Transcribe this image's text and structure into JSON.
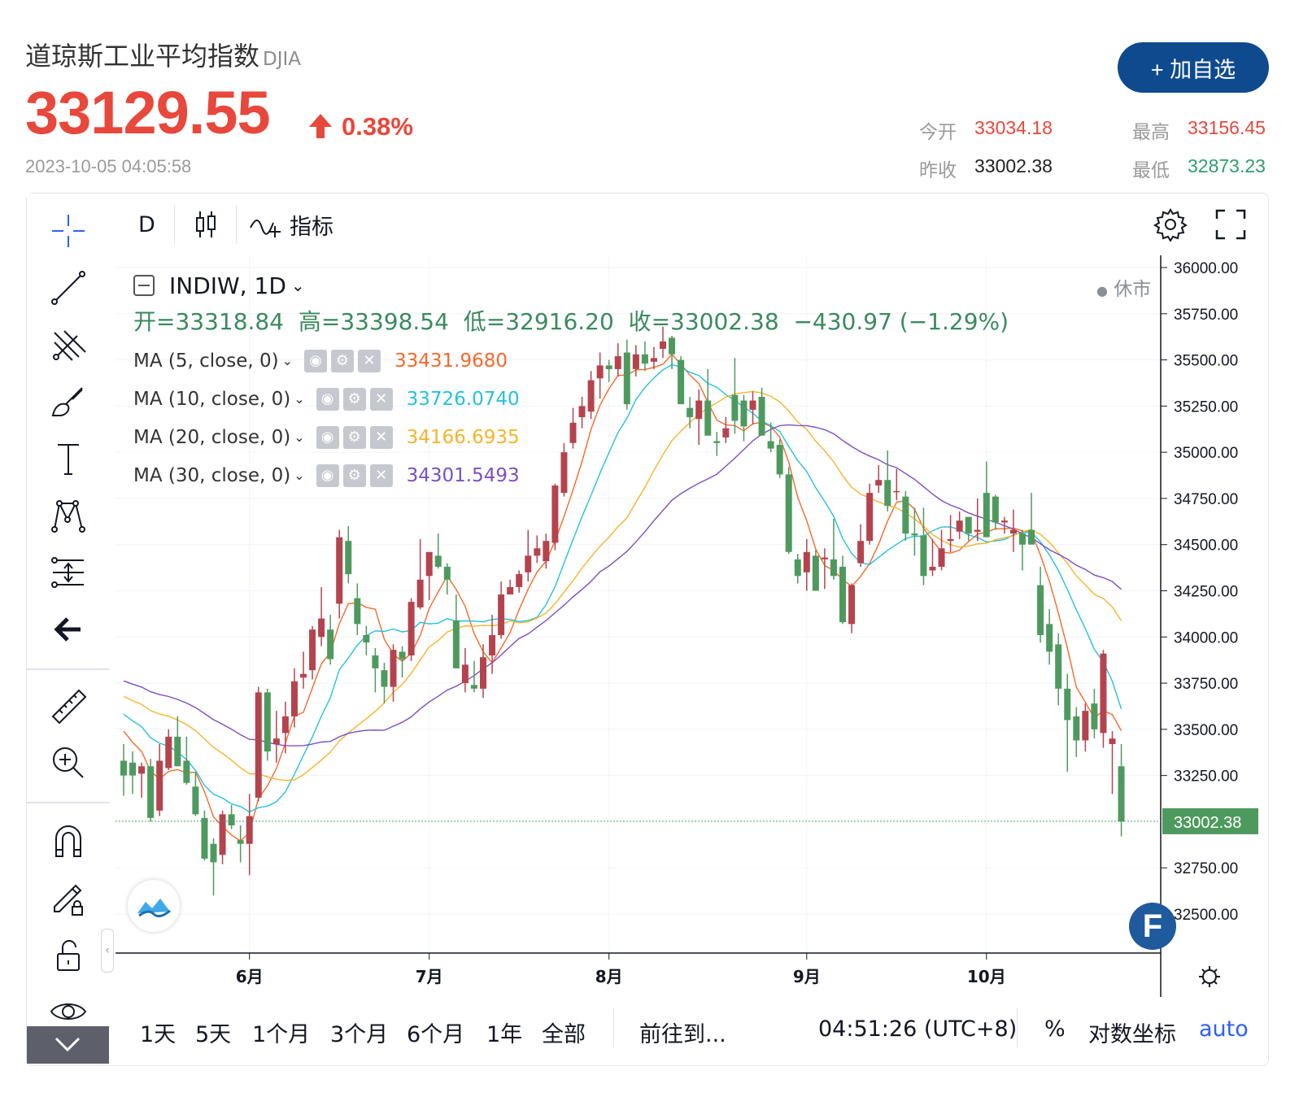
{
  "header": {
    "title": "道琼斯工业平均指数",
    "symbol": "DJIA",
    "price": "33129.55",
    "change_pct": "0.38%",
    "timestamp": "2023-10-05 04:05:58",
    "add_button": "+ 加自选",
    "stats": {
      "open_label": "今开",
      "open_value": "33034.18",
      "high_label": "最高",
      "high_value": "33156.45",
      "prev_close_label": "昨收",
      "prev_close_value": "33002.38",
      "low_label": "最低",
      "low_value": "32873.23"
    },
    "colors": {
      "up": "#e8473b",
      "down": "#2e9e6b",
      "brand": "#0f4a8f"
    }
  },
  "toolbar": {
    "interval": "D",
    "indicators_label": "指标",
    "icons": [
      "crosshair-icon",
      "trend-line-icon",
      "pitchfork-icon",
      "brush-icon",
      "text-icon",
      "pattern-icon",
      "long-position-icon",
      "back-arrow-icon",
      "ruler-icon",
      "zoom-in-icon",
      "magnet-icon",
      "lock-drawing-icon",
      "unlock-icon",
      "eye-icon",
      "chevron-down-icon"
    ]
  },
  "legend": {
    "symbol_line": "INDIW, 1D",
    "market_status": "休市",
    "ohlc_text": "开=33318.84  高=33398.54  低=32916.20  收=33002.38  −430.97 (−1.29%)",
    "ma": [
      {
        "label": "MA (5, close, 0)",
        "value": "33431.9680",
        "color": "#f7692a"
      },
      {
        "label": "MA (10, close, 0)",
        "value": "33726.0740",
        "color": "#26c1dc"
      },
      {
        "label": "MA (20, close, 0)",
        "value": "34166.6935",
        "color": "#f7b32b"
      },
      {
        "label": "MA (30, close, 0)",
        "value": "34301.5493",
        "color": "#7b4fc4"
      }
    ]
  },
  "bottom": {
    "ranges": [
      "1天",
      "5天",
      "1个月",
      "3个月",
      "6个月",
      "1年",
      "全部"
    ],
    "goto": "前往到...",
    "clock": "04:51:26 (UTC+8)",
    "percent": "%",
    "log_scale": "对数坐标",
    "auto": "auto"
  },
  "chart_data": {
    "type": "candlestick",
    "title": "INDIW, 1D",
    "ylim": [
      32300,
      36100
    ],
    "y_ticks": [
      "36000.00",
      "35750.00",
      "35500.00",
      "35250.00",
      "35000.00",
      "34750.00",
      "34500.00",
      "34250.00",
      "34000.00",
      "33750.00",
      "33500.00",
      "33250.00",
      "32750.00",
      "32500.00"
    ],
    "x_ticks": [
      {
        "label": "6月",
        "index": 14
      },
      {
        "label": "7月",
        "index": 34
      },
      {
        "label": "8月",
        "index": 54
      },
      {
        "label": "9月",
        "index": 76
      },
      {
        "label": "10月",
        "index": 96
      }
    ],
    "last_price_label": "33002.38",
    "candles": [
      {
        "o": 33330,
        "h": 33420,
        "l": 33140,
        "c": 33250
      },
      {
        "o": 33320,
        "h": 33380,
        "l": 33150,
        "c": 33250
      },
      {
        "o": 33260,
        "h": 33320,
        "l": 33130,
        "c": 33300
      },
      {
        "o": 33300,
        "h": 33340,
        "l": 33000,
        "c": 33020
      },
      {
        "o": 33060,
        "h": 33420,
        "l": 33030,
        "c": 33330
      },
      {
        "o": 33290,
        "h": 33500,
        "l": 33280,
        "c": 33460
      },
      {
        "o": 33460,
        "h": 33570,
        "l": 33300,
        "c": 33300
      },
      {
        "o": 33330,
        "h": 33460,
        "l": 33200,
        "c": 33210
      },
      {
        "o": 33190,
        "h": 33270,
        "l": 33030,
        "c": 33040
      },
      {
        "o": 33020,
        "h": 33060,
        "l": 32790,
        "c": 32800
      },
      {
        "o": 32880,
        "h": 32910,
        "l": 32600,
        "c": 32780
      },
      {
        "o": 32820,
        "h": 33060,
        "l": 32770,
        "c": 33040
      },
      {
        "o": 33040,
        "h": 33090,
        "l": 32960,
        "c": 32980
      },
      {
        "o": 32900,
        "h": 32980,
        "l": 32780,
        "c": 32880
      },
      {
        "o": 32880,
        "h": 33150,
        "l": 32710,
        "c": 33030
      },
      {
        "o": 33130,
        "h": 33730,
        "l": 33110,
        "c": 33700
      },
      {
        "o": 33700,
        "h": 33720,
        "l": 33330,
        "c": 33380
      },
      {
        "o": 33420,
        "h": 33600,
        "l": 33320,
        "c": 33450
      },
      {
        "o": 33480,
        "h": 33650,
        "l": 33370,
        "c": 33570
      },
      {
        "o": 33570,
        "h": 33830,
        "l": 33510,
        "c": 33760
      },
      {
        "o": 33780,
        "h": 33920,
        "l": 33720,
        "c": 33800
      },
      {
        "o": 33820,
        "h": 34060,
        "l": 33770,
        "c": 34040
      },
      {
        "o": 34000,
        "h": 34270,
        "l": 33950,
        "c": 34100
      },
      {
        "o": 34040,
        "h": 34120,
        "l": 33850,
        "c": 33880
      },
      {
        "o": 34180,
        "h": 34580,
        "l": 34100,
        "c": 34540
      },
      {
        "o": 34520,
        "h": 34600,
        "l": 34290,
        "c": 34340
      },
      {
        "o": 34210,
        "h": 34290,
        "l": 34010,
        "c": 34070
      },
      {
        "o": 34010,
        "h": 34060,
        "l": 33900,
        "c": 33970
      },
      {
        "o": 33900,
        "h": 33940,
        "l": 33700,
        "c": 33830
      },
      {
        "o": 33820,
        "h": 33860,
        "l": 33640,
        "c": 33730
      },
      {
        "o": 33730,
        "h": 33960,
        "l": 33650,
        "c": 33930
      },
      {
        "o": 33920,
        "h": 33950,
        "l": 33780,
        "c": 33880
      },
      {
        "o": 33900,
        "h": 34210,
        "l": 33870,
        "c": 34190
      },
      {
        "o": 34160,
        "h": 34530,
        "l": 34150,
        "c": 34310
      },
      {
        "o": 34330,
        "h": 34440,
        "l": 34200,
        "c": 34460
      },
      {
        "o": 34440,
        "h": 34560,
        "l": 34370,
        "c": 34380
      },
      {
        "o": 34380,
        "h": 34400,
        "l": 34230,
        "c": 34310
      },
      {
        "o": 34090,
        "h": 34230,
        "l": 33830,
        "c": 33830
      },
      {
        "o": 33750,
        "h": 33940,
        "l": 33700,
        "c": 33850
      },
      {
        "o": 33740,
        "h": 33870,
        "l": 33700,
        "c": 33720
      },
      {
        "o": 33720,
        "h": 33960,
        "l": 33670,
        "c": 33890
      },
      {
        "o": 33900,
        "h": 34120,
        "l": 33800,
        "c": 34010
      },
      {
        "o": 34010,
        "h": 34300,
        "l": 33990,
        "c": 34230
      },
      {
        "o": 34230,
        "h": 34310,
        "l": 34230,
        "c": 34270
      },
      {
        "o": 34270,
        "h": 34360,
        "l": 34240,
        "c": 34340
      },
      {
        "o": 34350,
        "h": 34580,
        "l": 34300,
        "c": 34440
      },
      {
        "o": 34440,
        "h": 34550,
        "l": 34400,
        "c": 34480
      },
      {
        "o": 34410,
        "h": 34560,
        "l": 34370,
        "c": 34520
      },
      {
        "o": 34510,
        "h": 34830,
        "l": 34470,
        "c": 34820
      },
      {
        "o": 34780,
        "h": 35050,
        "l": 34760,
        "c": 35000
      },
      {
        "o": 35050,
        "h": 35240,
        "l": 35020,
        "c": 35160
      },
      {
        "o": 35190,
        "h": 35300,
        "l": 35130,
        "c": 35250
      },
      {
        "o": 35220,
        "h": 35440,
        "l": 35180,
        "c": 35390
      },
      {
        "o": 35400,
        "h": 35540,
        "l": 35290,
        "c": 35470
      },
      {
        "o": 35470,
        "h": 35500,
        "l": 35380,
        "c": 35450
      },
      {
        "o": 35450,
        "h": 35590,
        "l": 35410,
        "c": 35520
      },
      {
        "o": 35540,
        "h": 35610,
        "l": 35230,
        "c": 35260
      },
      {
        "o": 35450,
        "h": 35580,
        "l": 35410,
        "c": 35530
      },
      {
        "o": 35530,
        "h": 35600,
        "l": 35440,
        "c": 35480
      },
      {
        "o": 35490,
        "h": 35570,
        "l": 35450,
        "c": 35510
      },
      {
        "o": 35560,
        "h": 35680,
        "l": 35510,
        "c": 35600
      },
      {
        "o": 35620,
        "h": 35630,
        "l": 35450,
        "c": 35530
      },
      {
        "o": 35500,
        "h": 35520,
        "l": 35260,
        "c": 35260
      },
      {
        "o": 35240,
        "h": 35300,
        "l": 35130,
        "c": 35190
      },
      {
        "o": 35180,
        "h": 35340,
        "l": 35040,
        "c": 35280
      },
      {
        "o": 35280,
        "h": 35450,
        "l": 35110,
        "c": 35090
      },
      {
        "o": 35060,
        "h": 35110,
        "l": 34980,
        "c": 35050
      },
      {
        "o": 35080,
        "h": 35190,
        "l": 35050,
        "c": 35130
      },
      {
        "o": 35310,
        "h": 35510,
        "l": 35100,
        "c": 35170
      },
      {
        "o": 35280,
        "h": 35310,
        "l": 35060,
        "c": 35140
      },
      {
        "o": 35230,
        "h": 35330,
        "l": 35150,
        "c": 35280
      },
      {
        "o": 35300,
        "h": 35350,
        "l": 35090,
        "c": 35090
      },
      {
        "o": 35060,
        "h": 35160,
        "l": 35000,
        "c": 35020
      },
      {
        "o": 35040,
        "h": 35070,
        "l": 34860,
        "c": 34880
      },
      {
        "o": 34880,
        "h": 34920,
        "l": 34450,
        "c": 34460
      },
      {
        "o": 34420,
        "h": 34450,
        "l": 34290,
        "c": 34330
      },
      {
        "o": 34350,
        "h": 34530,
        "l": 34250,
        "c": 34460
      },
      {
        "o": 34440,
        "h": 34470,
        "l": 34260,
        "c": 34250
      },
      {
        "o": 34420,
        "h": 34480,
        "l": 34260,
        "c": 34430
      },
      {
        "o": 34420,
        "h": 34640,
        "l": 34310,
        "c": 34330
      },
      {
        "o": 34380,
        "h": 34440,
        "l": 34070,
        "c": 34080
      },
      {
        "o": 34070,
        "h": 34290,
        "l": 34020,
        "c": 34280
      },
      {
        "o": 34400,
        "h": 34610,
        "l": 34380,
        "c": 34520
      },
      {
        "o": 34520,
        "h": 34830,
        "l": 34500,
        "c": 34780
      },
      {
        "o": 34820,
        "h": 34930,
        "l": 34780,
        "c": 34850
      },
      {
        "o": 34850,
        "h": 35010,
        "l": 34680,
        "c": 34710
      },
      {
        "o": 34790,
        "h": 34910,
        "l": 34740,
        "c": 34790
      },
      {
        "o": 34760,
        "h": 34790,
        "l": 34520,
        "c": 34560
      },
      {
        "o": 34560,
        "h": 34700,
        "l": 34440,
        "c": 34550
      },
      {
        "o": 34550,
        "h": 34700,
        "l": 34280,
        "c": 34330
      },
      {
        "o": 34360,
        "h": 34530,
        "l": 34330,
        "c": 34380
      },
      {
        "o": 34380,
        "h": 34580,
        "l": 34360,
        "c": 34480
      },
      {
        "o": 34520,
        "h": 34660,
        "l": 34460,
        "c": 34530
      },
      {
        "o": 34570,
        "h": 34680,
        "l": 34530,
        "c": 34630
      },
      {
        "o": 34650,
        "h": 34650,
        "l": 34520,
        "c": 34560
      },
      {
        "o": 34570,
        "h": 34750,
        "l": 34520,
        "c": 34580
      },
      {
        "o": 34780,
        "h": 34950,
        "l": 34540,
        "c": 34540
      },
      {
        "o": 34760,
        "h": 34770,
        "l": 34580,
        "c": 34620
      },
      {
        "o": 34620,
        "h": 34650,
        "l": 34560,
        "c": 34630
      },
      {
        "o": 34560,
        "h": 34690,
        "l": 34460,
        "c": 34580
      },
      {
        "o": 34560,
        "h": 34580,
        "l": 34360,
        "c": 34500
      },
      {
        "o": 34580,
        "h": 34780,
        "l": 34520,
        "c": 34500
      },
      {
        "o": 34280,
        "h": 34380,
        "l": 33970,
        "c": 34010
      },
      {
        "o": 34070,
        "h": 34150,
        "l": 33850,
        "c": 33920
      },
      {
        "o": 33960,
        "h": 34020,
        "l": 33630,
        "c": 33720
      },
      {
        "o": 33720,
        "h": 33800,
        "l": 33270,
        "c": 33550
      },
      {
        "o": 33570,
        "h": 33620,
        "l": 33350,
        "c": 33440
      },
      {
        "o": 33440,
        "h": 33640,
        "l": 33380,
        "c": 33600
      },
      {
        "o": 33640,
        "h": 33720,
        "l": 33450,
        "c": 33500
      },
      {
        "o": 33480,
        "h": 33930,
        "l": 33400,
        "c": 33910
      },
      {
        "o": 33420,
        "h": 33490,
        "l": 33150,
        "c": 33450
      },
      {
        "o": 33300,
        "h": 33420,
        "l": 32920,
        "c": 33000
      }
    ]
  }
}
